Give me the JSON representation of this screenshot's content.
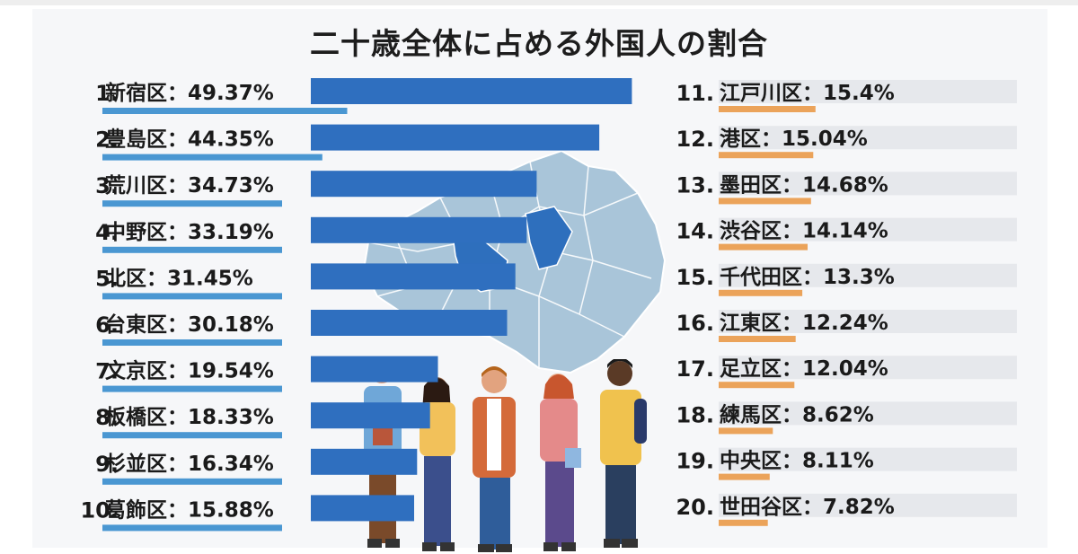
{
  "title": "二十歳全体に占める外国人の割合",
  "chart_data": {
    "type": "bar",
    "title": "二十歳全体に占める外国人の割合",
    "unit": "%",
    "xlim": [
      0,
      50
    ],
    "colors": {
      "top_bar": "#2f6fbf",
      "top_underline": "#4a97d2",
      "bottom_underline": "#eba35a",
      "track": "#e6e8ec",
      "map": "#a9c5d9",
      "map_highlight": "#2e6fbd"
    },
    "left": [
      {
        "rank": "1.",
        "name": "新宿区",
        "value": 49.37,
        "label": "49.37%"
      },
      {
        "rank": "2.",
        "name": "豊島区",
        "value": 44.35,
        "label": "44.35%"
      },
      {
        "rank": "3.",
        "name": "荒川区",
        "value": 34.73,
        "label": "34.73%"
      },
      {
        "rank": "4.",
        "name": "中野区",
        "value": 33.19,
        "label": "33.19%"
      },
      {
        "rank": "5.",
        "name": "北区",
        "value": 31.45,
        "label": "31.45%"
      },
      {
        "rank": "6.",
        "name": "台東区",
        "value": 30.18,
        "label": "30.18%"
      },
      {
        "rank": "7.",
        "name": "文京区",
        "value": 19.54,
        "label": "19.54%"
      },
      {
        "rank": "8.",
        "name": "板橋区",
        "value": 18.33,
        "label": "18.33%"
      },
      {
        "rank": "9.",
        "name": "杉並区",
        "value": 16.34,
        "label": "16.34%"
      },
      {
        "rank": "10.",
        "name": "葛飾区",
        "value": 15.88,
        "label": "15.88%"
      }
    ],
    "right": [
      {
        "rank": "11.",
        "name": "江戸川区",
        "value": 15.4,
        "label": "15.4%"
      },
      {
        "rank": "12.",
        "name": "港区",
        "value": 15.04,
        "label": "15.04%"
      },
      {
        "rank": "13.",
        "name": "墨田区",
        "value": 14.68,
        "label": "14.68%"
      },
      {
        "rank": "14.",
        "name": "渋谷区",
        "value": 14.14,
        "label": "14.14%"
      },
      {
        "rank": "15.",
        "name": "千代田区",
        "value": 13.3,
        "label": "13.3%"
      },
      {
        "rank": "16.",
        "name": "江東区",
        "value": 12.24,
        "label": "12.24%"
      },
      {
        "rank": "17.",
        "name": "足立区",
        "value": 12.04,
        "label": "12.04%"
      },
      {
        "rank": "18.",
        "name": "練馬区",
        "value": 8.62,
        "label": "8.62%"
      },
      {
        "rank": "19.",
        "name": "中央区",
        "value": 8.11,
        "label": "8.11%"
      },
      {
        "rank": "20.",
        "name": "世田谷区",
        "value": 7.82,
        "label": "7.82%"
      }
    ]
  },
  "illustration": {
    "map_icon": "tokyo-23-wards-map-icon",
    "people_icon": "group-of-young-people-icon"
  }
}
